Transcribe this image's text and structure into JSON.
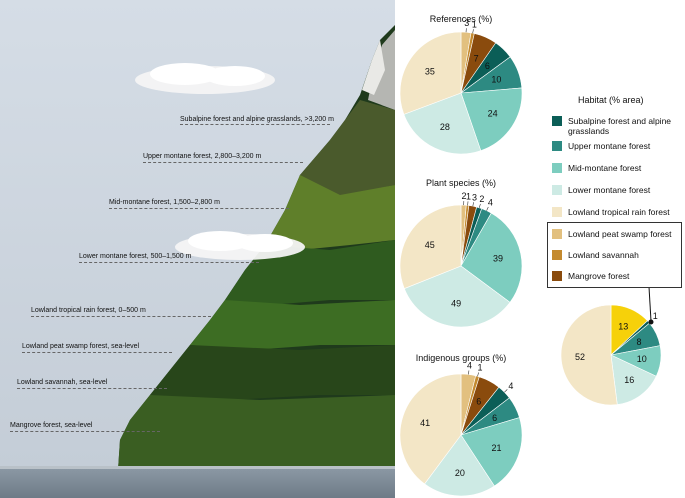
{
  "colors": {
    "subalpine": "#0b5e57",
    "upper_montane": "#2d8a82",
    "mid_montane": "#7dcdbf",
    "lower_montane": "#cdeae4",
    "lowland_rain": "#f3e6c6",
    "peat_swamp": "#e2c07f",
    "savannah": "#c48a2e",
    "mangrove": "#8a4b0d",
    "highlight": "#f6d10a"
  },
  "zones": [
    {
      "label": "Subalpine forest and alpine grasslands, >3,200 m"
    },
    {
      "label": "Upper montane forest, 2,800–3,200 m"
    },
    {
      "label": "Mid-montane forest, 1,500–2,800 m"
    },
    {
      "label": "Lower montane forest, 500–1,500 m"
    },
    {
      "label": "Lowland tropical rain forest, 0–500 m"
    },
    {
      "label": "Lowland peat swamp forest, sea-level"
    },
    {
      "label": "Lowland savannah, sea-level"
    },
    {
      "label": "Mangrove forest, sea-level"
    }
  ],
  "legend": {
    "title": "Habitat (% area)",
    "items": [
      {
        "label": "Subalpine forest and alpine grasslands",
        "color": "#0b5e57"
      },
      {
        "label": "Upper montane forest",
        "color": "#2d8a82"
      },
      {
        "label": "Mid-montane forest",
        "color": "#7dcdbf"
      },
      {
        "label": "Lower montane forest",
        "color": "#cdeae4"
      },
      {
        "label": "Lowland tropical rain forest",
        "color": "#f3e6c6"
      },
      {
        "label": "Lowland peat swamp forest",
        "color": "#e2c07f"
      },
      {
        "label": "Lowland savannah",
        "color": "#c48a2e"
      },
      {
        "label": "Mangrove forest",
        "color": "#8a4b0d"
      }
    ]
  },
  "chart_data": [
    {
      "type": "pie",
      "title": "References (%)",
      "categories": [
        "Subalpine forest and alpine grasslands",
        "Upper montane forest",
        "Mid-montane forest",
        "Lower montane forest",
        "Lowland tropical rain forest",
        "Lowland peat swamp forest",
        "Lowland savannah",
        "Mangrove forest"
      ],
      "values": [
        6,
        10,
        24,
        28,
        35,
        3,
        1,
        7
      ]
    },
    {
      "type": "pie",
      "title": "Plant species (%)",
      "categories": [
        "Subalpine forest and alpine grasslands",
        "Upper montane forest",
        "Mid-montane forest",
        "Lower montane forest",
        "Lowland tropical rain forest",
        "Lowland peat swamp forest",
        "Lowland savannah",
        "Mangrove forest"
      ],
      "values": [
        2,
        4,
        39,
        49,
        45,
        2,
        1,
        3
      ]
    },
    {
      "type": "pie",
      "title": "Indigenous groups (%)",
      "categories": [
        "Subalpine forest and alpine grasslands",
        "Upper montane forest",
        "Mid-montane forest",
        "Lower montane forest",
        "Lowland tropical rain forest",
        "Lowland peat swamp forest",
        "Lowland savannah",
        "Mangrove forest"
      ],
      "values": [
        4,
        6,
        21,
        20,
        41,
        4,
        1,
        6
      ]
    },
    {
      "type": "pie",
      "title": "",
      "categories": [
        "Subalpine forest and alpine grasslands",
        "Upper montane forest",
        "Mid-montane forest",
        "Lower montane forest",
        "Lowland tropical rain forest",
        "Lowland peat swamp forest (highlighted)",
        "Lowland savannah",
        "Mangrove forest"
      ],
      "values": [
        1,
        8,
        10,
        16,
        52,
        13,
        0,
        0
      ]
    }
  ]
}
